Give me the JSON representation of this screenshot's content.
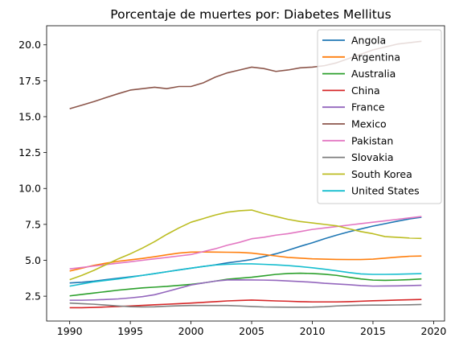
{
  "chart_data": {
    "type": "line",
    "title": "Porcentaje de muertes por: Diabetes Mellitus",
    "xlabel": "",
    "ylabel": "",
    "xlim": [
      1988.1,
      2020.9
    ],
    "ylim": [
      0.77,
      21.33
    ],
    "xticks": [
      1990,
      1995,
      2000,
      2005,
      2010,
      2015,
      2020
    ],
    "yticks": [
      2.5,
      5.0,
      7.5,
      10.0,
      12.5,
      15.0,
      17.5,
      20.0
    ],
    "ytick_labels": [
      "2.5",
      "5.0",
      "7.5",
      "10.0",
      "12.5",
      "15.0",
      "17.5",
      "20.0"
    ],
    "legend_position": "top-right",
    "x": [
      1990,
      1991,
      1992,
      1993,
      1994,
      1995,
      1996,
      1997,
      1998,
      1999,
      2000,
      2001,
      2002,
      2003,
      2004,
      2005,
      2006,
      2007,
      2008,
      2009,
      2010,
      2011,
      2012,
      2013,
      2014,
      2015,
      2016,
      2017,
      2018,
      2019
    ],
    "series": [
      {
        "name": "Angola",
        "color": "#1f77b4",
        "values": [
          3.42,
          3.47,
          3.55,
          3.65,
          3.75,
          3.85,
          3.95,
          4.07,
          4.2,
          4.33,
          4.45,
          4.57,
          4.68,
          4.82,
          4.93,
          5.05,
          5.25,
          5.45,
          5.7,
          5.97,
          6.22,
          6.5,
          6.75,
          6.98,
          7.18,
          7.38,
          7.55,
          7.72,
          7.88,
          8.0
        ]
      },
      {
        "name": "Argentina",
        "color": "#ff7f0e",
        "values": [
          4.25,
          4.45,
          4.65,
          4.8,
          4.93,
          5.03,
          5.13,
          5.25,
          5.38,
          5.5,
          5.57,
          5.58,
          5.57,
          5.56,
          5.55,
          5.5,
          5.4,
          5.3,
          5.2,
          5.15,
          5.1,
          5.08,
          5.06,
          5.05,
          5.05,
          5.08,
          5.15,
          5.22,
          5.28,
          5.3
        ]
      },
      {
        "name": "Australia",
        "color": "#2ca02c",
        "values": [
          2.52,
          2.62,
          2.72,
          2.82,
          2.92,
          3.0,
          3.08,
          3.13,
          3.18,
          3.25,
          3.32,
          3.42,
          3.55,
          3.68,
          3.75,
          3.82,
          3.92,
          4.02,
          4.08,
          4.1,
          4.08,
          4.03,
          3.95,
          3.82,
          3.7,
          3.62,
          3.6,
          3.62,
          3.65,
          3.7
        ]
      },
      {
        "name": "China",
        "color": "#d62728",
        "values": [
          1.7,
          1.7,
          1.72,
          1.75,
          1.78,
          1.82,
          1.86,
          1.9,
          1.94,
          1.98,
          2.02,
          2.07,
          2.12,
          2.17,
          2.2,
          2.23,
          2.2,
          2.17,
          2.15,
          2.12,
          2.1,
          2.1,
          2.1,
          2.12,
          2.15,
          2.18,
          2.2,
          2.23,
          2.25,
          2.27
        ]
      },
      {
        "name": "France",
        "color": "#9467bd",
        "values": [
          2.22,
          2.22,
          2.24,
          2.27,
          2.31,
          2.38,
          2.47,
          2.6,
          2.82,
          3.05,
          3.28,
          3.42,
          3.55,
          3.63,
          3.64,
          3.63,
          3.62,
          3.6,
          3.56,
          3.52,
          3.47,
          3.4,
          3.35,
          3.3,
          3.24,
          3.2,
          3.21,
          3.22,
          3.24,
          3.26
        ]
      },
      {
        "name": "Mexico",
        "color": "#8c564b",
        "values": [
          15.55,
          15.8,
          16.05,
          16.33,
          16.6,
          16.85,
          16.95,
          17.05,
          16.95,
          17.1,
          17.1,
          17.35,
          17.75,
          18.05,
          18.25,
          18.45,
          18.35,
          18.15,
          18.25,
          18.4,
          18.45,
          18.55,
          18.75,
          19.05,
          19.35,
          19.65,
          19.85,
          20.05,
          20.15,
          20.25
        ]
      },
      {
        "name": "Pakistan",
        "color": "#e377c2",
        "values": [
          4.4,
          4.5,
          4.6,
          4.7,
          4.8,
          4.9,
          5.0,
          5.1,
          5.2,
          5.3,
          5.4,
          5.6,
          5.8,
          6.05,
          6.25,
          6.5,
          6.6,
          6.75,
          6.85,
          7.0,
          7.15,
          7.25,
          7.35,
          7.45,
          7.55,
          7.65,
          7.75,
          7.85,
          7.95,
          8.05
        ]
      },
      {
        "name": "Slovakia",
        "color": "#7f7f7f",
        "values": [
          2.02,
          1.98,
          1.94,
          1.88,
          1.82,
          1.77,
          1.75,
          1.76,
          1.8,
          1.83,
          1.85,
          1.85,
          1.85,
          1.85,
          1.82,
          1.78,
          1.75,
          1.74,
          1.73,
          1.73,
          1.74,
          1.77,
          1.82,
          1.85,
          1.87,
          1.88,
          1.88,
          1.89,
          1.9,
          1.92
        ]
      },
      {
        "name": "South Korea",
        "color": "#bcbd22",
        "values": [
          3.65,
          3.95,
          4.3,
          4.7,
          5.1,
          5.45,
          5.85,
          6.3,
          6.8,
          7.25,
          7.65,
          7.9,
          8.15,
          8.35,
          8.45,
          8.5,
          8.25,
          8.05,
          7.85,
          7.7,
          7.6,
          7.5,
          7.4,
          7.2,
          7.0,
          6.85,
          6.65,
          6.6,
          6.55,
          6.52
        ]
      },
      {
        "name": "United States",
        "color": "#17becf",
        "values": [
          3.2,
          3.35,
          3.5,
          3.6,
          3.7,
          3.82,
          3.95,
          4.07,
          4.2,
          4.32,
          4.45,
          4.57,
          4.67,
          4.72,
          4.75,
          4.75,
          4.72,
          4.68,
          4.63,
          4.56,
          4.48,
          4.38,
          4.27,
          4.15,
          4.05,
          4.02,
          4.02,
          4.03,
          4.05,
          4.07
        ]
      }
    ]
  }
}
